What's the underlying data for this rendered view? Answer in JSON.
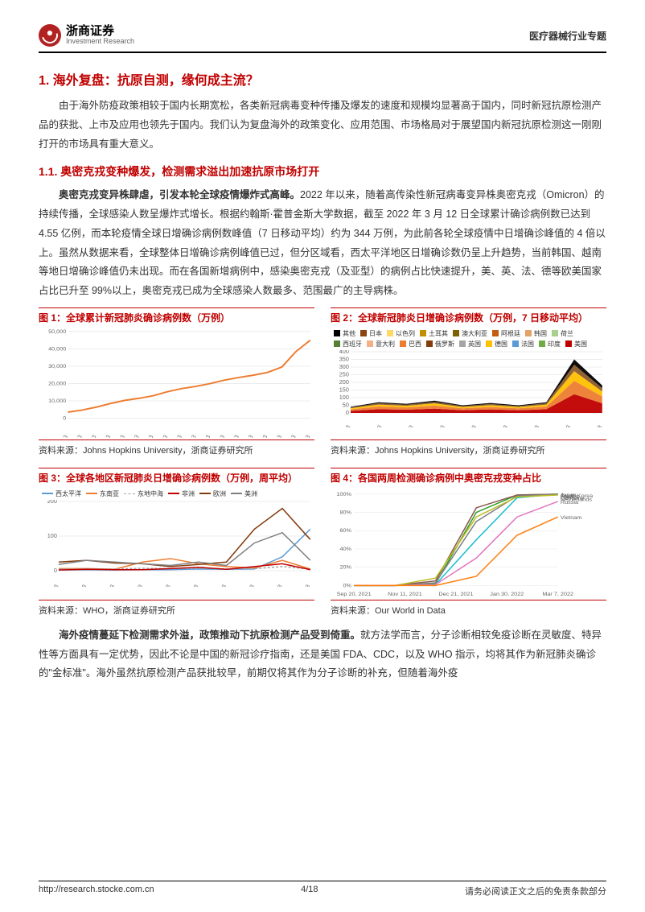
{
  "header": {
    "company_cn": "浙商证券",
    "company_en": "Investment Research",
    "doc_type": "医疗器械行业专题"
  },
  "section1": {
    "h1": "1. 海外复盘：抗原自测，缘何成主流？",
    "para1": "由于海外防疫政策相较于国内长期宽松，各类新冠病毒变种传播及爆发的速度和规模均显著高于国内，同时新冠抗原检测产品的获批、上市及应用也领先于国内。我们认为复盘海外的政策变化、应用范围、市场格局对于展望国内新冠抗原检测这一刚刚打开的市场具有重大意义。",
    "h2": "1.1. 奥密克戎变种爆发，检测需求溢出加速抗原市场打开",
    "para2_bold": "奥密克戎变异株肆虐，引发本轮全球疫情爆炸式高峰。",
    "para2_rest": "2022 年以来，随着高传染性新冠病毒变异株奥密克戎（Omicron）的持续传播，全球感染人数呈爆炸式增长。根据约翰斯·霍普金斯大学数据，截至 2022 年 3 月 12 日全球累计确诊病例数已达到 4.55 亿例，而本轮疫情全球日增确诊病例数峰值（7 日移动平均）约为 344 万例，为此前各轮全球疫情中日增确诊峰值的 4 倍以上。虽然从数据来看，全球整体日增确诊病例峰值已过，但分区域看，西太平洋地区日增确诊数仍呈上升趋势，当前韩国、越南等地日增确诊峰值仍未出现。而在各国新增病例中，感染奥密克戎（及亚型）的病例占比快速提升，美、英、法、德等欧美国家占比已升至 99%以上，奥密克戎已成为全球感染人数最多、范围最广的主导病株。"
  },
  "fig1": {
    "title": "图 1：全球累计新冠肺炎确诊病例数（万例）",
    "source": "资料来源：Johns Hopkins University，浙商证券研究所",
    "type": "line",
    "ylim": [
      0,
      50000
    ],
    "ytick_step": 10000,
    "x_labels": [
      "2020-10-03",
      "2020-11-03",
      "2020-12-03",
      "2021-01-03",
      "2021-02-03",
      "2021-03-03",
      "2021-04-03",
      "2021-05-03",
      "2021-06-03",
      "2021-07-03",
      "2021-08-03",
      "2021-09-03",
      "2021-10-03",
      "2021-11-03",
      "2021-12-03",
      "2022-01-03",
      "2022-02-03",
      "2022-03-03"
    ],
    "series": {
      "color": "#ed7d31",
      "values": [
        3500,
        4700,
        6400,
        8500,
        10300,
        11500,
        13000,
        15300,
        17100,
        18400,
        20000,
        22000,
        23500,
        24800,
        26400,
        29500,
        38500,
        45000
      ]
    },
    "grid_color": "#d9d9d9",
    "background_color": "#ffffff"
  },
  "fig2": {
    "title": "图 2：全球新冠肺炎日增确诊病例数（万例，7 日移动平均）",
    "source": "资料来源：Johns Hopkins University，浙商证券研究所",
    "type": "stacked-area",
    "ylim": [
      0,
      400
    ],
    "ytick_step": 50,
    "x_labels": [
      "2020-10-03",
      "2020-12-03",
      "2021-02-03",
      "2021-04-03",
      "2021-06-03",
      "2021-08-03",
      "2021-10-03",
      "2021-12-03",
      "2022-02-03"
    ],
    "legend": [
      {
        "label": "其他",
        "color": "#000000"
      },
      {
        "label": "日本",
        "color": "#8b4513"
      },
      {
        "label": "以色列",
        "color": "#ffd966"
      },
      {
        "label": "土耳其",
        "color": "#bf9000"
      },
      {
        "label": "澳大利亚",
        "color": "#7f6000"
      },
      {
        "label": "阿根廷",
        "color": "#c55a11"
      },
      {
        "label": "韩国",
        "color": "#e2a26a"
      },
      {
        "label": "荷兰",
        "color": "#a9d18e"
      },
      {
        "label": "西班牙",
        "color": "#548235"
      },
      {
        "label": "意大利",
        "color": "#f4b183"
      },
      {
        "label": "巴西",
        "color": "#ed7d31"
      },
      {
        "label": "俄罗斯",
        "color": "#843c0c"
      },
      {
        "label": "英国",
        "color": "#a5a5a5"
      },
      {
        "label": "德国",
        "color": "#ffc000"
      },
      {
        "label": "法国",
        "color": "#5b9bd5"
      },
      {
        "label": "印度",
        "color": "#70ad47"
      },
      {
        "label": "美国",
        "color": "#c00000"
      }
    ],
    "totals": [
      40,
      70,
      60,
      80,
      50,
      65,
      50,
      70,
      350,
      180
    ],
    "grid_color": "#d9d9d9"
  },
  "fig3": {
    "title": "图 3：全球各地区新冠肺炎日增确诊病例数（万例，周平均）",
    "source": "资料来源：WHO，浙商证券研究所",
    "type": "line",
    "ylim": [
      0,
      200
    ],
    "ytick_step": 100,
    "x_labels": [
      "2020-10-03",
      "2020-12-03",
      "2021-02-03",
      "2021-04-03",
      "2021-06-03",
      "2021-08-03",
      "2021-10-03",
      "2021-12-03",
      "2022-02-03",
      "2022-03-03"
    ],
    "legend": [
      {
        "label": "西太平洋",
        "color": "#5b9bd5",
        "dash": false
      },
      {
        "label": "东南亚",
        "color": "#ed7d31",
        "dash": false
      },
      {
        "label": "东地中海",
        "color": "#a5a5a5",
        "dash": true
      },
      {
        "label": "非洲",
        "color": "#c00000",
        "dash": false
      },
      {
        "label": "欧洲",
        "color": "#843c0c",
        "dash": false
      },
      {
        "label": "美洲",
        "color": "#7f7f7f",
        "dash": false
      }
    ],
    "series": {
      "西太平洋": [
        2,
        3,
        2,
        3,
        3,
        5,
        4,
        5,
        40,
        120
      ],
      "东南亚": [
        6,
        6,
        4,
        25,
        35,
        20,
        12,
        8,
        30,
        5
      ],
      "东地中海": [
        5,
        6,
        5,
        7,
        6,
        8,
        5,
        6,
        12,
        5
      ],
      "非洲": [
        2,
        4,
        3,
        3,
        6,
        10,
        4,
        12,
        20,
        3
      ],
      "欧洲": [
        25,
        30,
        22,
        20,
        12,
        18,
        25,
        120,
        180,
        90
      ],
      "美洲": [
        18,
        30,
        25,
        20,
        15,
        25,
        15,
        80,
        110,
        30
      ]
    },
    "grid_color": "#d9d9d9"
  },
  "fig4": {
    "title": "图 4：各国两周检测确诊病例中奥密克戎变种占比",
    "source": "资料来源：Our World in Data",
    "type": "line",
    "ylim": [
      0,
      100
    ],
    "ytick_step": 20,
    "y_suffix": "%",
    "x_labels": [
      "Sep 20, 2021",
      "Nov 11, 2021",
      "Dec 21, 2021",
      "Jan 30, 2022",
      "Mar 7, 2022"
    ],
    "legend": [
      {
        "label": "Japan",
        "color": "#2ca02c"
      },
      {
        "label": "South Korea",
        "color": "#17becf"
      },
      {
        "label": "France",
        "color": "#8c564b"
      },
      {
        "label": "Germany",
        "color": "#7f7f7f"
      },
      {
        "label": "Netherlands",
        "color": "#bcbd22"
      },
      {
        "label": "Russia",
        "color": "#e377c2"
      },
      {
        "label": "Vietnam",
        "color": "#ff7f0e"
      }
    ],
    "series": {
      "Japan": [
        0,
        0,
        2,
        80,
        99,
        100
      ],
      "South Korea": [
        0,
        0,
        1,
        50,
        96,
        100
      ],
      "France": [
        0,
        0,
        5,
        85,
        99,
        100
      ],
      "Germany": [
        0,
        0,
        3,
        70,
        98,
        100
      ],
      "Netherlands": [
        0,
        0,
        8,
        75,
        97,
        99
      ],
      "Russia": [
        0,
        0,
        1,
        30,
        75,
        92
      ],
      "Vietnam": [
        0,
        0,
        0,
        10,
        55,
        75
      ]
    },
    "grid_color": "#e5e5e5"
  },
  "section2": {
    "para3_bold": "海外疫情蔓延下检测需求外溢，政策推动下抗原检测产品受到倚重。",
    "para3_rest": "就方法学而言，分子诊断相较免疫诊断在灵敏度、特异性等方面具有一定优势，因此不论是中国的新冠诊疗指南，还是美国 FDA、CDC，以及 WHO 指示，均将其作为新冠肺炎确诊的\"金标准\"。海外虽然抗原检测产品获批较早，前期仅将其作为分子诊断的补充，但随着海外疫"
  },
  "footer": {
    "url": "http://research.stocke.com.cn",
    "page": "4/18",
    "disclaimer": "请务必阅读正文之后的免责条款部分"
  },
  "colors": {
    "accent": "#c00000",
    "text": "#333333"
  }
}
